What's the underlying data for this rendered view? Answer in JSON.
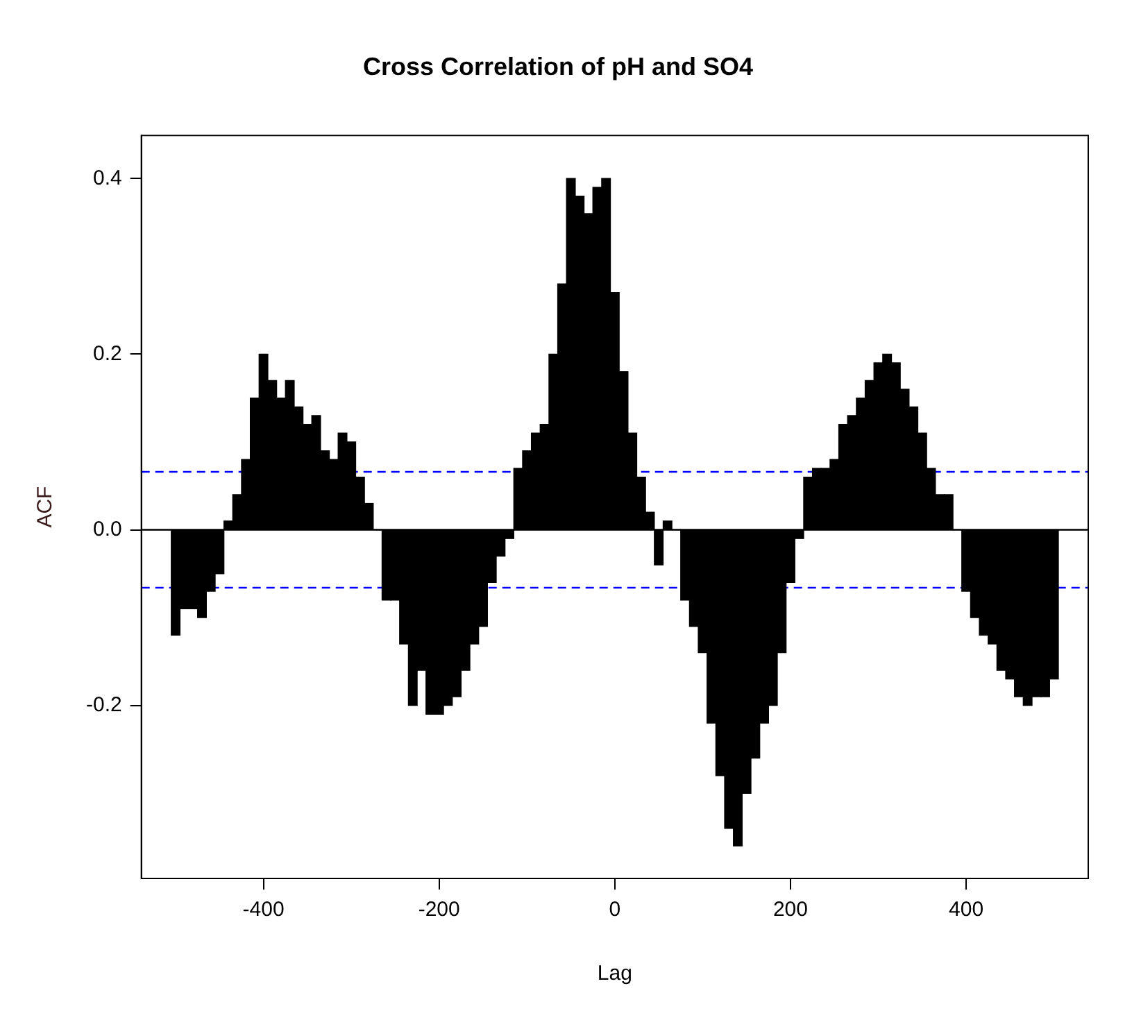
{
  "chart_data": {
    "type": "bar",
    "title": "Cross Correlation of pH and SO4",
    "xlabel": "Lag",
    "ylabel": "ACF",
    "x": [
      -500,
      -490,
      -480,
      -470,
      -460,
      -450,
      -440,
      -430,
      -420,
      -410,
      -400,
      -390,
      -380,
      -370,
      -360,
      -350,
      -340,
      -330,
      -320,
      -310,
      -300,
      -290,
      -280,
      -270,
      -260,
      -250,
      -240,
      -230,
      -220,
      -210,
      -200,
      -190,
      -180,
      -170,
      -160,
      -150,
      -140,
      -130,
      -120,
      -110,
      -100,
      -90,
      -80,
      -70,
      -60,
      -50,
      -40,
      -30,
      -20,
      -10,
      0,
      10,
      20,
      30,
      40,
      50,
      60,
      70,
      80,
      90,
      100,
      110,
      120,
      130,
      140,
      150,
      160,
      170,
      180,
      190,
      200,
      210,
      220,
      230,
      240,
      250,
      260,
      270,
      280,
      290,
      300,
      310,
      320,
      330,
      340,
      350,
      360,
      370,
      380,
      390,
      400,
      410,
      420,
      430,
      440,
      450,
      460,
      470,
      480,
      490,
      500
    ],
    "series": [
      {
        "color": "#000000",
        "values": [
          -0.12,
          -0.09,
          -0.09,
          -0.1,
          -0.07,
          -0.05,
          0.01,
          0.04,
          0.08,
          0.15,
          0.2,
          0.17,
          0.15,
          0.17,
          0.14,
          0.12,
          0.13,
          0.09,
          0.08,
          0.11,
          0.1,
          0.06,
          0.03,
          0.0,
          -0.08,
          -0.08,
          -0.13,
          -0.2,
          -0.16,
          -0.21,
          -0.21,
          -0.2,
          -0.19,
          -0.16,
          -0.13,
          -0.11,
          -0.06,
          -0.03,
          -0.01,
          0.07,
          0.09,
          0.11,
          0.12,
          0.2,
          0.28,
          0.4,
          0.38,
          0.36,
          0.39,
          0.4,
          0.27,
          0.18,
          0.11,
          0.06,
          0.02,
          -0.04,
          0.01,
          0.0,
          -0.08,
          -0.11,
          -0.14,
          -0.22,
          -0.28,
          -0.34,
          -0.36,
          -0.3,
          -0.26,
          -0.22,
          -0.2,
          -0.14,
          -0.06,
          -0.01,
          0.06,
          0.07,
          0.07,
          0.08,
          0.12,
          0.13,
          0.15,
          0.17,
          0.19,
          0.2,
          0.19,
          0.16,
          0.14,
          0.11,
          0.07,
          0.04,
          0.04,
          0.0,
          -0.07,
          -0.1,
          -0.12,
          -0.13,
          -0.16,
          -0.17,
          -0.19,
          -0.2,
          -0.19,
          -0.19,
          -0.17
        ]
      }
    ],
    "xlim": [
      -539,
      539
    ],
    "xticks": [
      -400,
      -200,
      0,
      200,
      400
    ],
    "ylim": [
      -0.397,
      0.449
    ],
    "yticks": [
      {
        "value": -0.2,
        "label": "-0.2"
      },
      {
        "value": 0,
        "label": "0.0"
      },
      {
        "value": 0.2,
        "label": "0.2"
      },
      {
        "value": 0.4,
        "label": "0.4"
      }
    ],
    "ref_lines": [
      {
        "axis": "y",
        "value": 0.066,
        "color": "#0000ff",
        "line_style": "dashed"
      },
      {
        "axis": "y",
        "value": -0.066,
        "color": "#0000ff",
        "line_style": "dashed"
      },
      {
        "axis": "y",
        "value": 0,
        "color": "#000000",
        "line_style": "solid"
      }
    ],
    "grid": false,
    "legend": false
  }
}
